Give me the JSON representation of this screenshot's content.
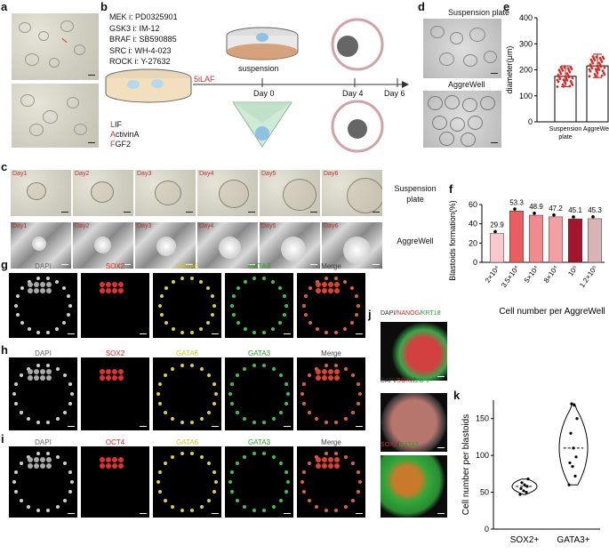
{
  "panels": {
    "a": "a",
    "b": "b",
    "c": "c",
    "d": "d",
    "e": "e",
    "f": "f",
    "g": "g",
    "h": "h",
    "i": "i",
    "j": "j",
    "k": "k"
  },
  "b": {
    "inhibitors": [
      {
        "target": "MEK i",
        "drug": "PD0325901"
      },
      {
        "target": "GSK3 i",
        "drug": "IM-12"
      },
      {
        "target": "BRAF i",
        "drug": "SB590885"
      },
      {
        "target": "SRC i",
        "drug": "WH-4-023"
      },
      {
        "target": "ROCK i",
        "drug": "Y-27632"
      }
    ],
    "medium": "5iLAF",
    "factors": [
      {
        "initial": "L",
        "rest": "IF"
      },
      {
        "initial": "A",
        "rest": "ctivinA"
      },
      {
        "initial": "F",
        "rest": "GF2"
      }
    ],
    "suspension": "suspension",
    "days": [
      "Day 0",
      "Day 4",
      "Day 6"
    ]
  },
  "c": {
    "days": [
      "Day1",
      "Day2",
      "Day3",
      "Day4",
      "Day5",
      "Day6"
    ],
    "row_labels": [
      "Suspension\nplate",
      "AggreWell"
    ]
  },
  "d": {
    "top": "Suspension plate",
    "bottom": "AggreWell"
  },
  "g_h_i": {
    "g": [
      "DAPI",
      "SOX2",
      "GATA6",
      "GATA3",
      "Merge"
    ],
    "h": [
      "DAPI",
      "SOX2",
      "GATA6",
      "GATA3",
      "Merge"
    ],
    "i": [
      "DAPI",
      "OCT4",
      "GATA6",
      "GATA3",
      "Merge"
    ]
  },
  "j": {
    "labels": [
      [
        {
          "t": "DAPI",
          "c": "#333333"
        },
        {
          "t": "/",
          "c": "#333333"
        },
        {
          "t": "NANOG",
          "c": "#d62728"
        },
        {
          "t": "/",
          "c": "#333333"
        },
        {
          "t": "KRT18",
          "c": "#2ca02c"
        }
      ],
      [
        {
          "t": "DAPI",
          "c": "#333333"
        },
        {
          "t": "/",
          "c": "#333333"
        },
        {
          "t": "SOX2",
          "c": "#d62728"
        },
        {
          "t": "/",
          "c": "#333333"
        },
        {
          "t": "ZO-1",
          "c": "#2ca02c"
        }
      ],
      [
        {
          "t": "SOX2",
          "c": "#d62728"
        },
        {
          "t": "/",
          "c": "#333333"
        },
        {
          "t": "GATA3",
          "c": "#2ca02c"
        }
      ]
    ]
  },
  "chart_data": [
    {
      "panel": "e",
      "type": "bar",
      "categories": [
        "Suspension\nplate",
        "AggreWell"
      ],
      "values": [
        175,
        215
      ],
      "errors": [
        40,
        45
      ],
      "ylabel": "diameter(μm)",
      "ylim": [
        0,
        400
      ],
      "yticks": [
        "0",
        "100",
        "200",
        "300",
        "400"
      ],
      "colors": [
        "#c9302c",
        "#c9302c"
      ]
    },
    {
      "panel": "f",
      "type": "bar",
      "categories": [
        "2×10⁴",
        "3.5×10⁴",
        "5×10⁴",
        "8×10⁴",
        "10⁵",
        "1.2×10⁵"
      ],
      "values": [
        29.9,
        53.3,
        48.9,
        47.2,
        45.1,
        45.3
      ],
      "value_labels": [
        "29.9",
        "53.3",
        "48.9",
        "47.2",
        "45.1",
        "45.3"
      ],
      "xlabel": "Cell number per AggreWell",
      "ylabel": "Blastoids formation(%)",
      "ylim": [
        0,
        60
      ],
      "yticks": [
        "0",
        "20",
        "40",
        "60"
      ],
      "colors": [
        "#f9c9cf",
        "#ea5e62",
        "#f08a8f",
        "#f3a0a5",
        "#a3152a",
        "#d9b3b6"
      ]
    },
    {
      "panel": "k",
      "type": "violin",
      "categories": [
        "SOX2+",
        "GATA3+"
      ],
      "ylabel": "Cell number per blastoids",
      "ylim": [
        0,
        175
      ],
      "yticks": [
        "0",
        "50",
        "100",
        "150"
      ],
      "series": [
        {
          "name": "SOX2+",
          "values": [
            47,
            50,
            52,
            55,
            58,
            60,
            63,
            68
          ]
        },
        {
          "name": "GATA3+",
          "values": [
            60,
            72,
            85,
            90,
            98,
            110,
            130,
            150,
            168,
            170
          ]
        }
      ]
    }
  ]
}
